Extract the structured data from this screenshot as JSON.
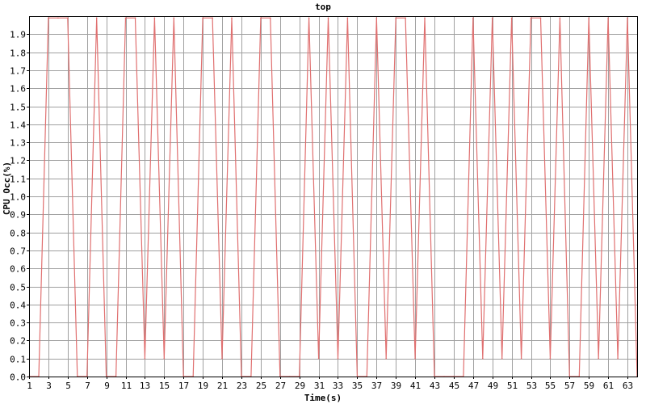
{
  "chart_data": {
    "type": "line",
    "title": "top",
    "xlabel": "Time(s)",
    "ylabel": "CPU Occ(%)",
    "xlim": [
      1,
      64
    ],
    "ylim": [
      0,
      2.0
    ],
    "grid": true,
    "x_ticks": [
      1,
      3,
      5,
      7,
      9,
      11,
      13,
      15,
      17,
      19,
      21,
      23,
      25,
      27,
      29,
      31,
      33,
      35,
      37,
      39,
      41,
      43,
      45,
      47,
      49,
      51,
      53,
      55,
      57,
      59,
      61,
      63
    ],
    "x_tick_labels": [
      "1",
      "3",
      "5",
      "7",
      "9",
      "11",
      "13",
      "15",
      "17",
      "19",
      "21",
      "23",
      "25",
      "27",
      "29",
      "31",
      "33",
      "35",
      "37",
      "39",
      "41",
      "43",
      "45",
      "47",
      "49",
      "51",
      "53",
      "55",
      "57",
      "59",
      "61",
      "63"
    ],
    "y_ticks": [
      0.0,
      0.1,
      0.2,
      0.3,
      0.4,
      0.5,
      0.6,
      0.7,
      0.8,
      0.9,
      1.0,
      1.1,
      1.2,
      1.3,
      1.4,
      1.5,
      1.6,
      1.7,
      1.8,
      1.9
    ],
    "y_tick_labels": [
      "0.0",
      "0.1",
      "0.2",
      "0.3",
      "0.4",
      "0.5",
      "0.6",
      "0.7",
      "0.8",
      "0.9",
      "1.0",
      "1.1",
      "1.2",
      "1.3",
      "1.4",
      "1.5",
      "1.6",
      "1.7",
      "1.8",
      "1.9"
    ],
    "series": [
      {
        "color": "#e07070",
        "x": [
          1,
          2,
          3,
          4,
          5,
          6,
          7,
          8,
          9,
          10,
          11,
          12,
          13,
          14,
          15,
          16,
          17,
          18,
          19,
          20,
          21,
          22,
          23,
          24,
          25,
          26,
          27,
          28,
          29,
          30,
          31,
          32,
          33,
          34,
          35,
          36,
          37,
          38,
          39,
          40,
          41,
          42,
          43,
          44,
          45,
          46,
          47,
          48,
          49,
          50,
          51,
          52,
          53,
          54,
          55,
          56,
          57,
          58,
          59,
          60,
          61,
          62,
          63,
          64
        ],
        "values": [
          0.0,
          0.0,
          1.99,
          1.99,
          1.99,
          0.0,
          0.0,
          1.99,
          0.0,
          0.0,
          1.99,
          1.99,
          0.1,
          1.99,
          0.1,
          1.99,
          0.0,
          0.0,
          1.99,
          1.99,
          0.1,
          1.99,
          0.0,
          0.0,
          1.99,
          1.99,
          0.0,
          0.0,
          0.0,
          1.99,
          0.1,
          1.99,
          0.1,
          1.99,
          0.0,
          0.0,
          1.99,
          0.1,
          1.99,
          1.99,
          0.1,
          1.99,
          0.0,
          0.0,
          0.0,
          0.0,
          1.99,
          0.1,
          1.99,
          0.1,
          1.99,
          0.1,
          1.99,
          1.99,
          0.1,
          1.99,
          0.0,
          0.0,
          1.99,
          0.1,
          1.99,
          0.1,
          1.99,
          0.0
        ]
      }
    ]
  }
}
